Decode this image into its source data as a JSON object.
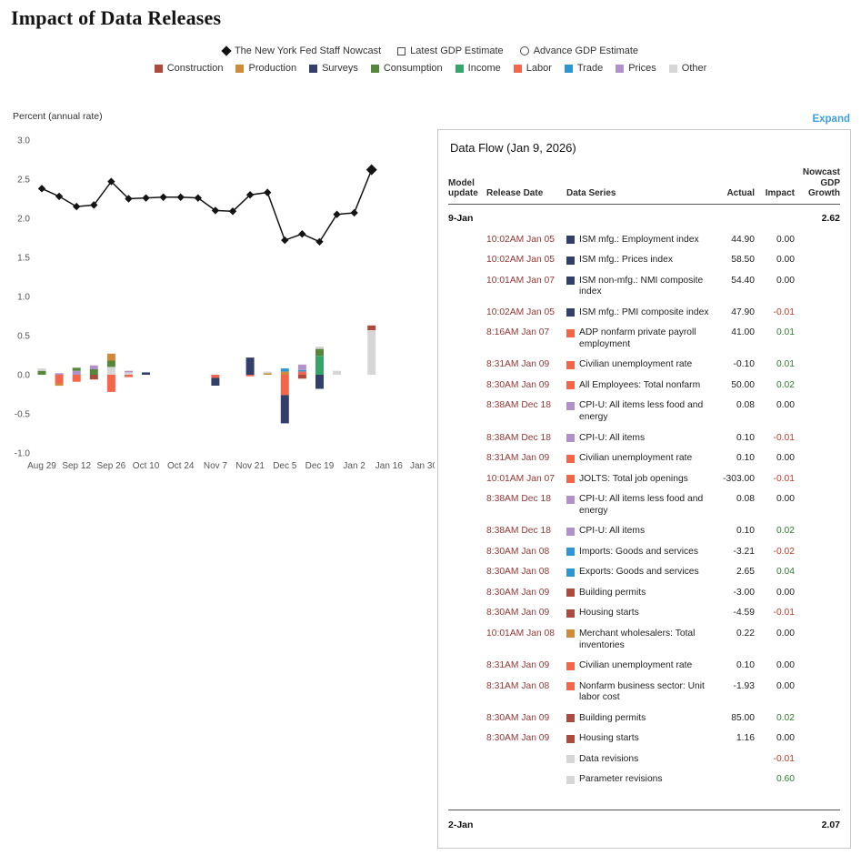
{
  "page": {
    "title": "Impact of Data Releases",
    "expand_label": "Expand",
    "axis_label": "Percent (annual rate)"
  },
  "legend": {
    "series": [
      {
        "label": "The New York Fed Staff Nowcast",
        "marker": "diamond"
      },
      {
        "label": "Latest GDP Estimate",
        "marker": "square"
      },
      {
        "label": "Advance GDP Estimate",
        "marker": "circle"
      }
    ],
    "categories": [
      {
        "label": "Construction",
        "color": "#ab4a3d"
      },
      {
        "label": "Production",
        "color": "#cf8b3a"
      },
      {
        "label": "Surveys",
        "color": "#333f6b"
      },
      {
        "label": "Consumption",
        "color": "#55883b"
      },
      {
        "label": "Income",
        "color": "#35a668"
      },
      {
        "label": "Labor",
        "color": "#f4654a"
      },
      {
        "label": "Trade",
        "color": "#2c96d2"
      },
      {
        "label": "Prices",
        "color": "#b291ca"
      },
      {
        "label": "Other",
        "color": "#d6d6d6"
      }
    ]
  },
  "chart_data": {
    "type": "line+stacked-bar",
    "title": "Impact of Data Releases",
    "ylabel": "Percent (annual rate)",
    "ylim": [
      -1.0,
      3.0
    ],
    "yticks": [
      3.0,
      2.5,
      2.0,
      1.5,
      1.0,
      0.5,
      0.0,
      -0.5,
      -1.0
    ],
    "x_tick_labels": [
      "Aug 29",
      "Sep 12",
      "Sep 26",
      "Oct 10",
      "Oct 24",
      "Nov 7",
      "Nov 21",
      "Dec 5",
      "Dec 19",
      "Jan 2",
      "Jan 16",
      "Jan 30"
    ],
    "weeks": [
      "Aug 29",
      "Sep 5",
      "Sep 12",
      "Sep 19",
      "Sep 26",
      "Oct 3",
      "Oct 10",
      "Oct 17",
      "Oct 24",
      "Oct 31",
      "Nov 7",
      "Nov 14",
      "Nov 21",
      "Nov 28",
      "Dec 5",
      "Dec 12",
      "Dec 19",
      "Dec 26",
      "Jan 2",
      "Jan 9"
    ],
    "series": [
      {
        "name": "The New York Fed Staff Nowcast",
        "type": "line",
        "values": [
          2.38,
          2.28,
          2.15,
          2.17,
          2.47,
          2.25,
          2.26,
          2.27,
          2.27,
          2.26,
          2.1,
          2.09,
          2.3,
          2.33,
          1.72,
          1.8,
          1.7,
          2.05,
          2.07,
          2.62
        ]
      }
    ],
    "bar_segments": [
      {
        "Consumption": 0.05,
        "Other": 0.03
      },
      {
        "Prices": 0.02,
        "Labor": -0.11,
        "Production": -0.03
      },
      {
        "Prices": 0.05,
        "Consumption": 0.04,
        "Labor": -0.09
      },
      {
        "Consumption": 0.07,
        "Prices": 0.05,
        "Construction": -0.06
      },
      {
        "Other": 0.1,
        "Consumption": 0.08,
        "Production": 0.09,
        "Labor": -0.22
      },
      {
        "Other": 0.03,
        "Prices": 0.02,
        "Labor": -0.03
      },
      {
        "Surveys": 0.03
      },
      {},
      {},
      {},
      {
        "Labor": -0.04,
        "Surveys": -0.1
      },
      {},
      {
        "Surveys": 0.22,
        "Labor": -0.02
      },
      {
        "Production": 0.02,
        "Other": 0.02
      },
      {
        "Production": 0.04,
        "Trade": 0.04,
        "Labor": -0.26,
        "Surveys": -0.36
      },
      {
        "Labor": 0.04,
        "Trade": 0.02,
        "Prices": 0.07,
        "Construction": -0.05
      },
      {
        "Income": 0.24,
        "Consumption": 0.09,
        "Other": 0.03,
        "Surveys": -0.18
      },
      {
        "Other": 0.05
      },
      {},
      {
        "Other": 0.57,
        "Construction": 0.06
      }
    ]
  },
  "panel": {
    "title": "Data Flow (Jan 9, 2026)",
    "columns": {
      "model_update": "Model update",
      "release_date": "Release Date",
      "data_series": "Data Series",
      "actual": "Actual",
      "impact": "Impact",
      "nowcast": "Nowcast GDP Growth"
    },
    "sections": [
      {
        "label": "9-Jan",
        "nowcast": "2.62",
        "rows": [
          {
            "release": "10:02AM Jan 05",
            "series": "ISM mfg.: Employment index",
            "category": "Surveys",
            "actual": "44.90",
            "impact": "0.00"
          },
          {
            "release": "10:02AM Jan 05",
            "series": "ISM mfg.: Prices index",
            "category": "Surveys",
            "actual": "58.50",
            "impact": "0.00"
          },
          {
            "release": "10:01AM Jan 07",
            "series": "ISM non-mfg.: NMI composite index",
            "category": "Surveys",
            "actual": "54.40",
            "impact": "0.00"
          },
          {
            "release": "10:02AM Jan 05",
            "series": "ISM mfg.: PMI composite index",
            "category": "Surveys",
            "actual": "47.90",
            "impact": "-0.01"
          },
          {
            "release": "8:16AM Jan 07",
            "series": "ADP nonfarm private payroll employment",
            "category": "Labor",
            "actual": "41.00",
            "impact": "0.01"
          },
          {
            "release": "8:31AM Jan 09",
            "series": "Civilian unemployment rate",
            "category": "Labor",
            "actual": "-0.10",
            "impact": "0.01"
          },
          {
            "release": "8:30AM Jan 09",
            "series": "All Employees: Total nonfarm",
            "category": "Labor",
            "actual": "50.00",
            "impact": "0.02"
          },
          {
            "release": "8:38AM Dec 18",
            "series": "CPI-U: All items less food and energy",
            "category": "Prices",
            "actual": "0.08",
            "impact": "0.00"
          },
          {
            "release": "8:38AM Dec 18",
            "series": "CPI-U: All items",
            "category": "Prices",
            "actual": "0.10",
            "impact": "-0.01"
          },
          {
            "release": "8:31AM Jan 09",
            "series": "Civilian unemployment rate",
            "category": "Labor",
            "actual": "0.10",
            "impact": "0.00"
          },
          {
            "release": "10:01AM Jan 07",
            "series": "JOLTS: Total job openings",
            "category": "Labor",
            "actual": "-303.00",
            "impact": "-0.01"
          },
          {
            "release": "8:38AM Dec 18",
            "series": "CPI-U: All items less food and energy",
            "category": "Prices",
            "actual": "0.08",
            "impact": "0.00"
          },
          {
            "release": "8:38AM Dec 18",
            "series": "CPI-U: All items",
            "category": "Prices",
            "actual": "0.10",
            "impact": "0.02"
          },
          {
            "release": "8:30AM Jan 08",
            "series": "Imports: Goods and services",
            "category": "Trade",
            "actual": "-3.21",
            "impact": "-0.02"
          },
          {
            "release": "8:30AM Jan 08",
            "series": "Exports: Goods and services",
            "category": "Trade",
            "actual": "2.65",
            "impact": "0.04"
          },
          {
            "release": "8:30AM Jan 09",
            "series": "Building permits",
            "category": "Construction",
            "actual": "-3.00",
            "impact": "0.00"
          },
          {
            "release": "8:30AM Jan 09",
            "series": "Housing starts",
            "category": "Construction",
            "actual": "-4.59",
            "impact": "-0.01"
          },
          {
            "release": "10:01AM Jan 08",
            "series": "Merchant wholesalers: Total inventories",
            "category": "Production",
            "actual": "0.22",
            "impact": "0.00"
          },
          {
            "release": "8:31AM Jan 09",
            "series": "Civilian unemployment rate",
            "category": "Labor",
            "actual": "0.10",
            "impact": "0.00"
          },
          {
            "release": "8:31AM Jan 08",
            "series": "Nonfarm business sector: Unit labor cost",
            "category": "Labor",
            "actual": "-1.93",
            "impact": "0.00"
          },
          {
            "release": "8:30AM Jan 09",
            "series": "Building permits",
            "category": "Construction",
            "actual": "85.00",
            "impact": "0.02"
          },
          {
            "release": "8:30AM Jan 09",
            "series": "Housing starts",
            "category": "Construction",
            "actual": "1.16",
            "impact": "0.00"
          },
          {
            "release": "",
            "series": "Data revisions",
            "category": "Other",
            "actual": "",
            "impact": "-0.01"
          },
          {
            "release": "",
            "series": "Parameter revisions",
            "category": "Other",
            "actual": "",
            "impact": "0.60"
          }
        ]
      },
      {
        "label": "2-Jan",
        "nowcast": "2.07",
        "rows": []
      }
    ]
  }
}
